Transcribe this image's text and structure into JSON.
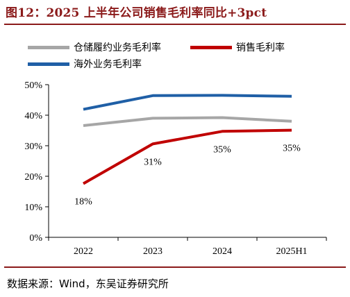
{
  "figure_title": "图12：2025 上半年公司销售毛利率同比+3pct",
  "source_note": "数据来源：Wind，东吴证券研究所",
  "colors": {
    "title": "#8b1a1a",
    "warehouse_series": "#a6a6a6",
    "sales_series": "#c00000",
    "overseas_series": "#1f5fa6",
    "axis": "#000000"
  },
  "chart_data": {
    "type": "line",
    "categories": [
      "2022",
      "2023",
      "2024",
      "2025H1"
    ],
    "ylim": [
      0,
      50
    ],
    "y_ticks": [
      0,
      10,
      20,
      30,
      40,
      50
    ],
    "y_tick_labels": [
      "0%",
      "10%",
      "20%",
      "30%",
      "40%",
      "50%"
    ],
    "grid": false,
    "legend_position": "top",
    "series": [
      {
        "name": "仓储履约业务毛利率",
        "color": "#a6a6a6",
        "values": [
          36.6,
          39.0,
          39.2,
          38.0
        ],
        "labels": []
      },
      {
        "name": "销售毛利率",
        "color": "#c00000",
        "values": [
          17.6,
          30.6,
          34.7,
          35.1
        ],
        "labels": [
          "18%",
          "31%",
          "35%",
          "35%"
        ]
      },
      {
        "name": "海外业务毛利率",
        "color": "#1f5fa6",
        "values": [
          41.9,
          46.4,
          46.5,
          46.2
        ],
        "labels": []
      }
    ]
  }
}
